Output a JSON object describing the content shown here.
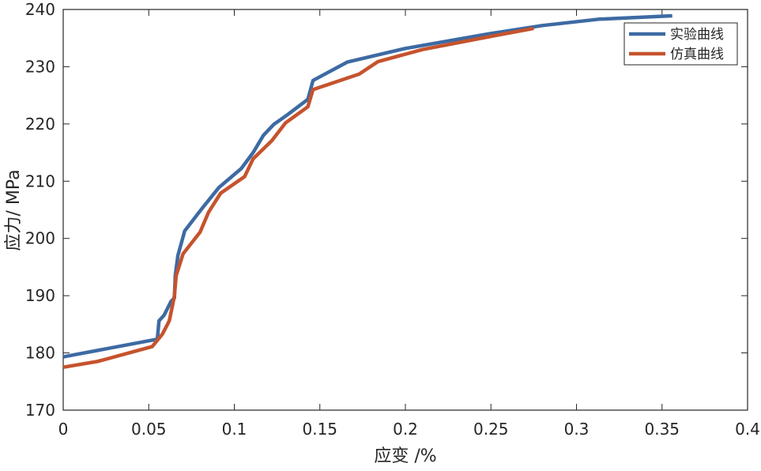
{
  "chart_data": {
    "type": "line",
    "xlabel": "应变 /%",
    "ylabel": "应力/ MPa",
    "xlim": [
      0,
      0.4
    ],
    "ylim": [
      170,
      240
    ],
    "x_ticks": [
      0,
      0.05,
      0.1,
      0.15,
      0.2,
      0.25,
      0.3,
      0.35,
      0.4
    ],
    "x_tick_labels": [
      "0",
      "0.05",
      "0.1",
      "0.15",
      "0.2",
      "0.25",
      "0.3",
      "0.35",
      "0.4"
    ],
    "y_ticks": [
      170,
      180,
      190,
      200,
      210,
      220,
      230,
      240
    ],
    "y_tick_labels": [
      "170",
      "180",
      "190",
      "200",
      "210",
      "220",
      "230",
      "240"
    ],
    "grid": false,
    "legend_position": "top-right",
    "colors": {
      "experiment": "#3d6aa3",
      "simulation": "#c5532d",
      "axis": "#262626"
    },
    "series": [
      {
        "name": "实验曲线",
        "color": "#3d6aa3",
        "points": [
          [
            0,
            179.3
          ],
          [
            0.055,
            182.4
          ],
          [
            0.056,
            185.6
          ],
          [
            0.059,
            186.6
          ],
          [
            0.063,
            189.0
          ],
          [
            0.065,
            189.6
          ],
          [
            0.0655,
            193.5
          ],
          [
            0.067,
            197.0
          ],
          [
            0.071,
            201.3
          ],
          [
            0.081,
            205.2
          ],
          [
            0.091,
            208.9
          ],
          [
            0.104,
            212.2
          ],
          [
            0.111,
            215.0
          ],
          [
            0.117,
            218.0
          ],
          [
            0.123,
            219.9
          ],
          [
            0.131,
            221.6
          ],
          [
            0.143,
            224.3
          ],
          [
            0.146,
            227.6
          ],
          [
            0.166,
            230.8
          ],
          [
            0.2,
            233.2
          ],
          [
            0.25,
            235.8
          ],
          [
            0.28,
            237.2
          ],
          [
            0.313,
            238.3
          ],
          [
            0.356,
            238.9
          ]
        ]
      },
      {
        "name": "仿真曲线",
        "color": "#c5532d",
        "points": [
          [
            0,
            177.5
          ],
          [
            0.02,
            178.5
          ],
          [
            0.052,
            181.1
          ],
          [
            0.058,
            183.3
          ],
          [
            0.062,
            185.6
          ],
          [
            0.064,
            188.5
          ],
          [
            0.065,
            190.0
          ],
          [
            0.066,
            193.5
          ],
          [
            0.07,
            197.3
          ],
          [
            0.08,
            201.1
          ],
          [
            0.085,
            204.6
          ],
          [
            0.092,
            207.9
          ],
          [
            0.106,
            210.8
          ],
          [
            0.111,
            213.9
          ],
          [
            0.122,
            217.1
          ],
          [
            0.13,
            220.2
          ],
          [
            0.143,
            223.0
          ],
          [
            0.146,
            226.0
          ],
          [
            0.173,
            228.7
          ],
          [
            0.184,
            230.9
          ],
          [
            0.21,
            233.0
          ],
          [
            0.25,
            235.3
          ],
          [
            0.275,
            236.7
          ]
        ]
      }
    ]
  }
}
